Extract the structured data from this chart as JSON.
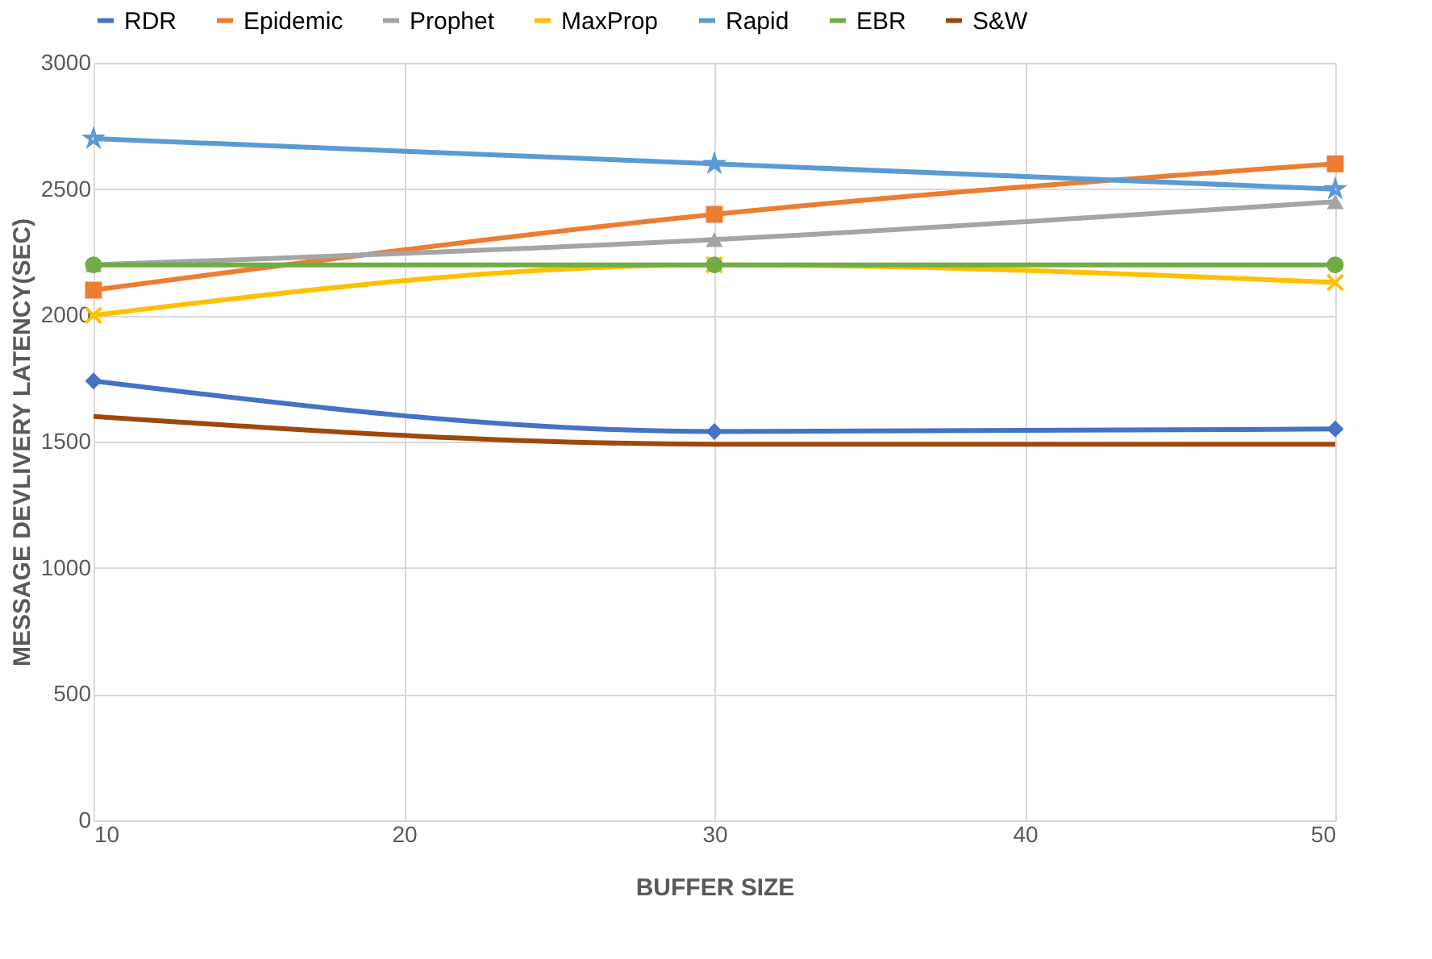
{
  "chart_data": {
    "type": "line",
    "xlabel": "BUFFER SIZE",
    "ylabel": "MESSAGE DEVLIVERY LATENCY(SEC)",
    "x": [
      10,
      30,
      50
    ],
    "xlim": [
      10,
      50
    ],
    "xticks": [
      10,
      20,
      30,
      40,
      50
    ],
    "ylim": [
      0,
      3000
    ],
    "yticks": [
      0,
      500,
      1000,
      1500,
      2000,
      2500,
      3000
    ],
    "grid": true,
    "legend": "top",
    "series": [
      {
        "name": "RDR",
        "color": "#4472c4",
        "marker": "diamond",
        "values": [
          1740,
          1540,
          1550
        ]
      },
      {
        "name": "Epidemic",
        "color": "#ed7d31",
        "marker": "square",
        "values": [
          2100,
          2400,
          2600
        ]
      },
      {
        "name": "Prophet",
        "color": "#a5a5a5",
        "marker": "triangle",
        "values": [
          2200,
          2300,
          2450
        ]
      },
      {
        "name": "MaxProp",
        "color": "#ffc000",
        "marker": "cross",
        "values": [
          2000,
          2200,
          2130
        ]
      },
      {
        "name": "Rapid",
        "color": "#5b9bd5",
        "marker": "star",
        "values": [
          2700,
          2600,
          2500
        ]
      },
      {
        "name": "EBR",
        "color": "#70ad47",
        "marker": "circle",
        "values": [
          2200,
          2200,
          2200
        ]
      },
      {
        "name": "S&W",
        "color": "#9e480e",
        "marker": "none",
        "values": [
          1600,
          1490,
          1490
        ]
      }
    ]
  }
}
